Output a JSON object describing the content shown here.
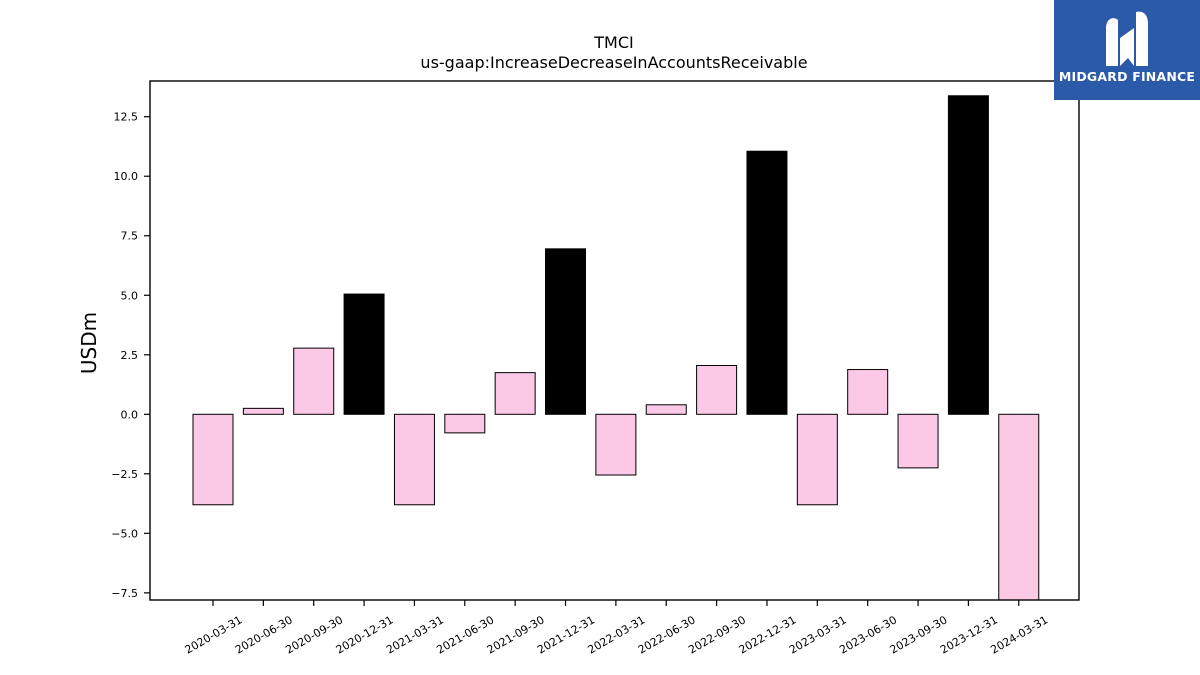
{
  "chart_data": {
    "type": "bar",
    "title": "TMCI",
    "subtitle": "us-gaap:IncreaseDecreaseInAccountsReceivable",
    "xlabel": "",
    "ylabel": "USDm",
    "ylim": [
      -7.8,
      14.0
    ],
    "yticks": [
      -7.5,
      -5.0,
      -2.5,
      0.0,
      2.5,
      5.0,
      7.5,
      10.0,
      12.5
    ],
    "ytick_labels": [
      "−7.5",
      "−5.0",
      "−2.5",
      "0.0",
      "2.5",
      "5.0",
      "7.5",
      "10.0",
      "12.5"
    ],
    "grid": false,
    "categories": [
      "2020-03-31",
      "2020-06-30",
      "2020-09-30",
      "2020-12-31",
      "2021-03-31",
      "2021-06-30",
      "2021-09-30",
      "2021-12-31",
      "2022-03-31",
      "2022-06-30",
      "2022-09-30",
      "2022-12-31",
      "2023-03-31",
      "2023-06-30",
      "2023-09-30",
      "2023-12-31",
      "2024-03-31"
    ],
    "values": [
      -3.8,
      0.25,
      2.78,
      5.05,
      -3.8,
      -0.78,
      1.75,
      6.95,
      -2.55,
      0.4,
      2.05,
      11.05,
      -3.8,
      1.88,
      -2.25,
      13.38,
      -7.9
    ],
    "colors": {
      "quarter": "#fbc8e6",
      "year_end": "#000000",
      "edge": "#000000"
    },
    "bar_color_keys": [
      "quarter",
      "quarter",
      "quarter",
      "year_end",
      "quarter",
      "quarter",
      "quarter",
      "year_end",
      "quarter",
      "quarter",
      "quarter",
      "year_end",
      "quarter",
      "quarter",
      "quarter",
      "year_end",
      "quarter"
    ]
  },
  "logo": {
    "text": "MIDGARD FINANCE",
    "background": "#2a5aa8"
  }
}
